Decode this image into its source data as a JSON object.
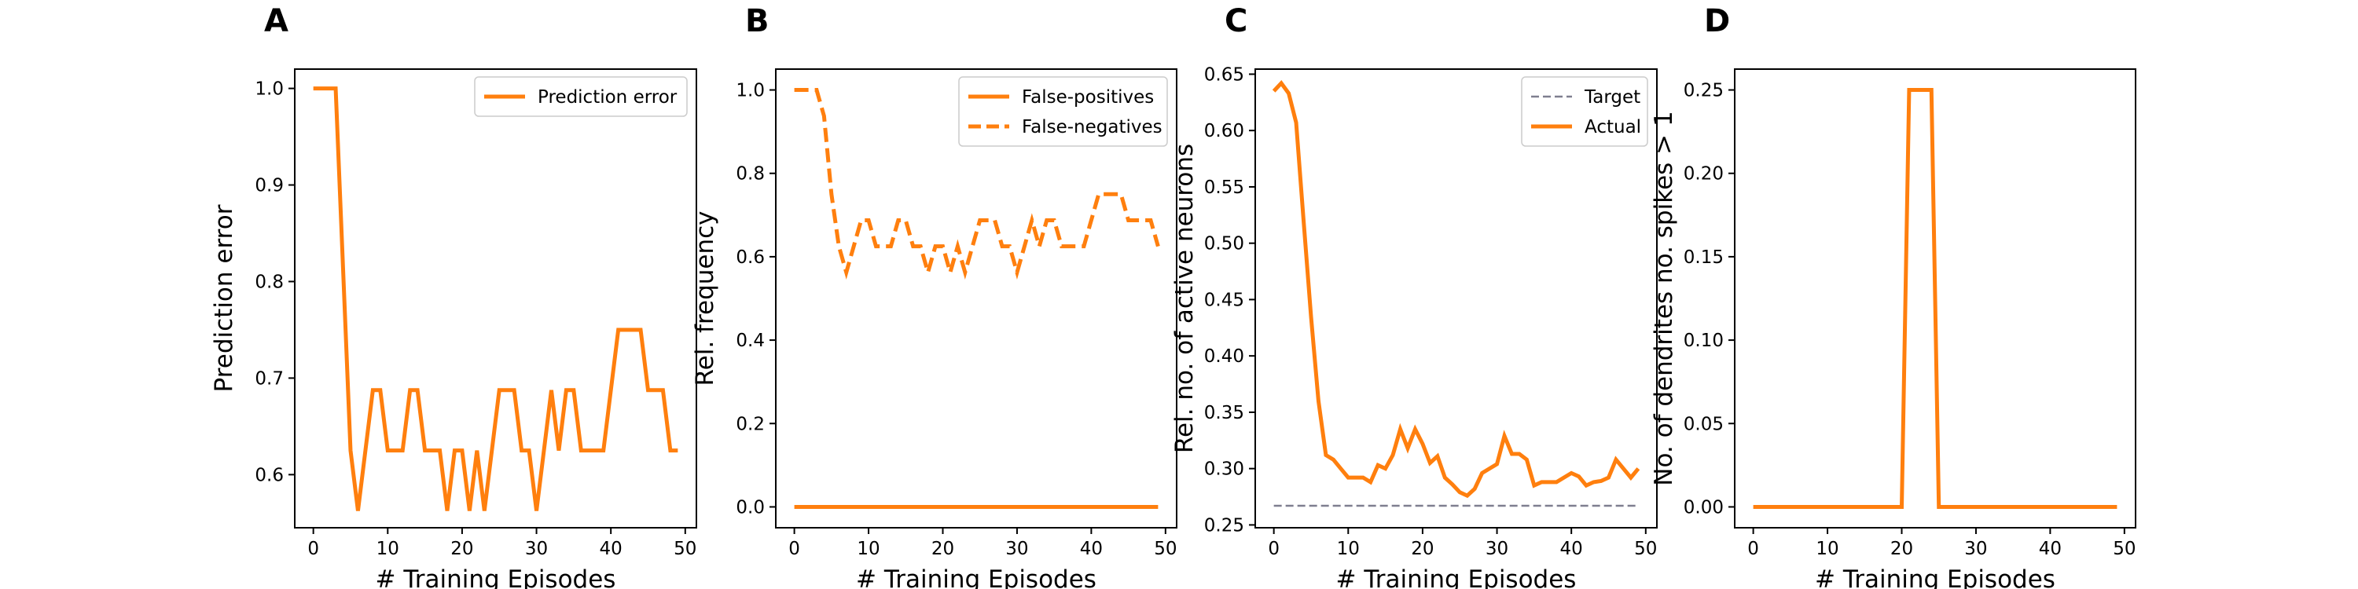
{
  "colors": {
    "series": "#ff7f0e",
    "target": "#7f7f8f"
  },
  "chart_data": [
    {
      "panel": "A",
      "type": "line",
      "xlabel": "# Training Episodes",
      "ylabel": "Prediction error",
      "xlim": [
        -2.5,
        51.5
      ],
      "ylim": [
        0.545,
        1.02
      ],
      "xticks": [
        0,
        10,
        20,
        30,
        40,
        50
      ],
      "yticks": [
        0.6,
        0.7,
        0.8,
        0.9,
        1.0
      ],
      "ytick_labels": [
        "0.6",
        "0.7",
        "0.8",
        "0.9",
        "1.0"
      ],
      "grid": false,
      "legend_position": "top-right",
      "x": [
        0,
        1,
        2,
        3,
        4,
        5,
        6,
        7,
        8,
        9,
        10,
        11,
        12,
        13,
        14,
        15,
        16,
        17,
        18,
        19,
        20,
        21,
        22,
        23,
        24,
        25,
        26,
        27,
        28,
        29,
        30,
        31,
        32,
        33,
        34,
        35,
        36,
        37,
        38,
        39,
        40,
        41,
        42,
        43,
        44,
        45,
        46,
        47,
        48,
        49
      ],
      "series": [
        {
          "name": "Prediction error",
          "style": "solid",
          "color": "#ff7f0e",
          "values": [
            1.0,
            1.0,
            1.0,
            1.0,
            0.8125,
            0.625,
            0.5625,
            0.625,
            0.6875,
            0.6875,
            0.625,
            0.625,
            0.625,
            0.6875,
            0.6875,
            0.625,
            0.625,
            0.625,
            0.5625,
            0.625,
            0.625,
            0.5625,
            0.625,
            0.5625,
            0.625,
            0.6875,
            0.6875,
            0.6875,
            0.625,
            0.625,
            0.5625,
            0.625,
            0.6875,
            0.625,
            0.6875,
            0.6875,
            0.625,
            0.625,
            0.625,
            0.625,
            0.6875,
            0.75,
            0.75,
            0.75,
            0.75,
            0.6875,
            0.6875,
            0.6875,
            0.625,
            0.625
          ]
        }
      ]
    },
    {
      "panel": "B",
      "type": "line",
      "xlabel": "# Training Episodes",
      "ylabel": "Rel. frequency",
      "xlim": [
        -2.5,
        51.5
      ],
      "ylim": [
        -0.05,
        1.05
      ],
      "xticks": [
        0,
        10,
        20,
        30,
        40,
        50
      ],
      "yticks": [
        0.0,
        0.2,
        0.4,
        0.6,
        0.8,
        1.0
      ],
      "ytick_labels": [
        "0.0",
        "0.2",
        "0.4",
        "0.6",
        "0.8",
        "1.0"
      ],
      "grid": false,
      "legend_position": "top-right",
      "x": [
        0,
        1,
        2,
        3,
        4,
        5,
        6,
        7,
        8,
        9,
        10,
        11,
        12,
        13,
        14,
        15,
        16,
        17,
        18,
        19,
        20,
        21,
        22,
        23,
        24,
        25,
        26,
        27,
        28,
        29,
        30,
        31,
        32,
        33,
        34,
        35,
        36,
        37,
        38,
        39,
        40,
        41,
        42,
        43,
        44,
        45,
        46,
        47,
        48,
        49
      ],
      "series": [
        {
          "name": "False-positives",
          "style": "solid",
          "color": "#ff7f0e",
          "values": [
            0,
            0,
            0,
            0,
            0,
            0,
            0,
            0,
            0,
            0,
            0,
            0,
            0,
            0,
            0,
            0,
            0,
            0,
            0,
            0,
            0,
            0,
            0,
            0,
            0,
            0,
            0,
            0,
            0,
            0,
            0,
            0,
            0,
            0,
            0,
            0,
            0,
            0,
            0,
            0,
            0,
            0,
            0,
            0,
            0,
            0,
            0,
            0,
            0,
            0
          ]
        },
        {
          "name": "False-negatives",
          "style": "dashed",
          "color": "#ff7f0e",
          "values": [
            1.0,
            1.0,
            1.0,
            1.0,
            0.9375,
            0.75,
            0.625,
            0.5625,
            0.625,
            0.6875,
            0.6875,
            0.625,
            0.625,
            0.625,
            0.6875,
            0.6875,
            0.625,
            0.625,
            0.5625,
            0.625,
            0.625,
            0.5625,
            0.625,
            0.5625,
            0.625,
            0.6875,
            0.6875,
            0.6875,
            0.625,
            0.625,
            0.5625,
            0.625,
            0.6875,
            0.625,
            0.6875,
            0.6875,
            0.625,
            0.625,
            0.625,
            0.625,
            0.6875,
            0.75,
            0.75,
            0.75,
            0.75,
            0.6875,
            0.6875,
            0.6875,
            0.6875,
            0.625
          ]
        }
      ]
    },
    {
      "panel": "C",
      "type": "line",
      "xlabel": "# Training Episodes",
      "ylabel": "Rel. no. of active neurons",
      "xlim": [
        -2.5,
        51.5
      ],
      "ylim": [
        0.2475,
        0.6545
      ],
      "xticks": [
        0,
        10,
        20,
        30,
        40,
        50
      ],
      "yticks": [
        0.25,
        0.3,
        0.35,
        0.4,
        0.45,
        0.5,
        0.55,
        0.6,
        0.65
      ],
      "ytick_labels": [
        "0.25",
        "0.30",
        "0.35",
        "0.40",
        "0.45",
        "0.50",
        "0.55",
        "0.60",
        "0.65"
      ],
      "grid": false,
      "legend_position": "top-right",
      "x": [
        0,
        1,
        2,
        3,
        4,
        5,
        6,
        7,
        8,
        9,
        10,
        11,
        12,
        13,
        14,
        15,
        16,
        17,
        18,
        19,
        20,
        21,
        22,
        23,
        24,
        25,
        26,
        27,
        28,
        29,
        30,
        31,
        32,
        33,
        34,
        35,
        36,
        37,
        38,
        39,
        40,
        41,
        42,
        43,
        44,
        45,
        46,
        47,
        48,
        49
      ],
      "series": [
        {
          "name": "Target",
          "style": "dashed",
          "color": "#7f7f8f",
          "values": [
            0.267,
            0.267,
            0.267,
            0.267,
            0.267,
            0.267,
            0.267,
            0.267,
            0.267,
            0.267,
            0.267,
            0.267,
            0.267,
            0.267,
            0.267,
            0.267,
            0.267,
            0.267,
            0.267,
            0.267,
            0.267,
            0.267,
            0.267,
            0.267,
            0.267,
            0.267,
            0.267,
            0.267,
            0.267,
            0.267,
            0.267,
            0.267,
            0.267,
            0.267,
            0.267,
            0.267,
            0.267,
            0.267,
            0.267,
            0.267,
            0.267,
            0.267,
            0.267,
            0.267,
            0.267,
            0.267,
            0.267,
            0.267,
            0.267,
            0.267
          ]
        },
        {
          "name": "Actual",
          "style": "solid",
          "color": "#ff7f0e",
          "values": [
            0.635,
            0.642,
            0.633,
            0.607,
            0.52,
            0.435,
            0.36,
            0.312,
            0.308,
            0.3,
            0.292,
            0.292,
            0.292,
            0.288,
            0.303,
            0.3,
            0.312,
            0.335,
            0.318,
            0.335,
            0.322,
            0.305,
            0.311,
            0.292,
            0.286,
            0.279,
            0.276,
            0.282,
            0.296,
            0.3,
            0.304,
            0.329,
            0.313,
            0.313,
            0.308,
            0.285,
            0.288,
            0.288,
            0.288,
            0.292,
            0.296,
            0.293,
            0.285,
            0.288,
            0.289,
            0.292,
            0.308,
            0.3,
            0.292,
            0.3
          ]
        }
      ]
    },
    {
      "panel": "D",
      "type": "line",
      "xlabel": "# Training Episodes",
      "ylabel": "No. of dendrites no. spikes > 1",
      "xlim": [
        -2.5,
        51.5
      ],
      "ylim": [
        -0.0125,
        0.2625
      ],
      "xticks": [
        0,
        10,
        20,
        30,
        40,
        50
      ],
      "yticks": [
        0.0,
        0.05,
        0.1,
        0.15,
        0.2,
        0.25
      ],
      "ytick_labels": [
        "0.00",
        "0.05",
        "0.10",
        "0.15",
        "0.20",
        "0.25"
      ],
      "grid": false,
      "legend_position": "none",
      "x": [
        0,
        1,
        2,
        3,
        4,
        5,
        6,
        7,
        8,
        9,
        10,
        11,
        12,
        13,
        14,
        15,
        16,
        17,
        18,
        19,
        20,
        21,
        22,
        23,
        24,
        25,
        26,
        27,
        28,
        29,
        30,
        31,
        32,
        33,
        34,
        35,
        36,
        37,
        38,
        39,
        40,
        41,
        42,
        43,
        44,
        45,
        46,
        47,
        48,
        49
      ],
      "series": [
        {
          "style": "solid",
          "color": "#ff7f0e",
          "values": [
            0,
            0,
            0,
            0,
            0,
            0,
            0,
            0,
            0,
            0,
            0,
            0,
            0,
            0,
            0,
            0,
            0,
            0,
            0,
            0,
            0,
            0.25,
            0.25,
            0.25,
            0.25,
            0,
            0,
            0,
            0,
            0,
            0,
            0,
            0,
            0,
            0,
            0,
            0,
            0,
            0,
            0,
            0,
            0,
            0,
            0,
            0,
            0,
            0,
            0,
            0,
            0
          ]
        }
      ]
    }
  ]
}
